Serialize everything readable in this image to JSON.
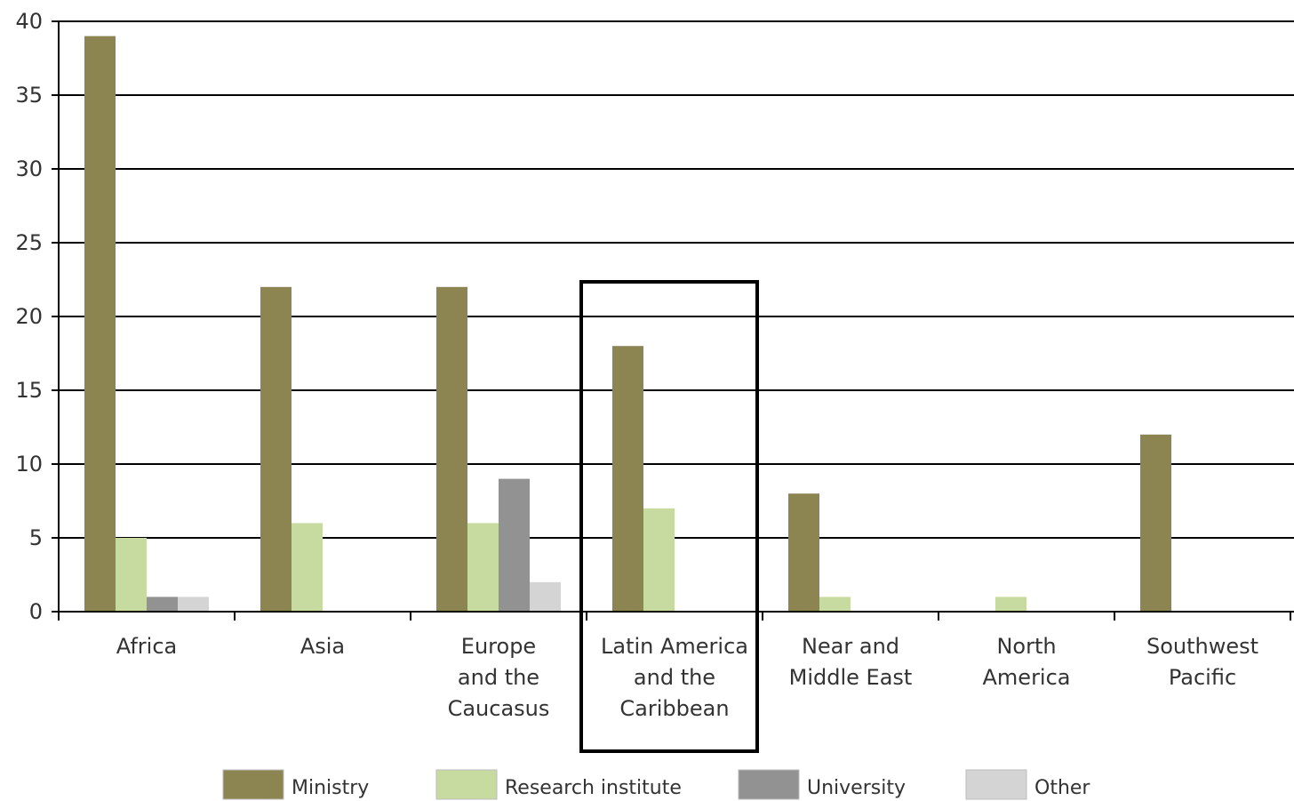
{
  "chart_data": {
    "type": "bar",
    "categories": [
      [
        "Africa"
      ],
      [
        "Asia"
      ],
      [
        "Europe",
        "and the",
        "Caucasus"
      ],
      [
        "Latin America",
        "and the",
        "Caribbean"
      ],
      [
        "Near and",
        "Middle East"
      ],
      [
        "North",
        "America"
      ],
      [
        "Southwest",
        "Pacific"
      ]
    ],
    "series": [
      {
        "name": "Ministry",
        "color": "#8c8451",
        "values": [
          39,
          22,
          22,
          18,
          8,
          0,
          12
        ]
      },
      {
        "name": "Research institute",
        "color": "#c7dba0",
        "values": [
          5,
          6,
          6,
          7,
          1,
          1,
          0
        ]
      },
      {
        "name": "University",
        "color": "#929292",
        "values": [
          1,
          0,
          9,
          0,
          0,
          0,
          0
        ]
      },
      {
        "name": "Other",
        "color": "#d4d4d4",
        "values": [
          1,
          0,
          2,
          0,
          0,
          0,
          0
        ]
      }
    ],
    "ylim": [
      0,
      40
    ],
    "yticks": [
      0,
      5,
      10,
      15,
      20,
      25,
      30,
      35,
      40
    ],
    "grid": true,
    "legend_position": "bottom",
    "highlighted_category": "Latin America and the Caribbean"
  }
}
